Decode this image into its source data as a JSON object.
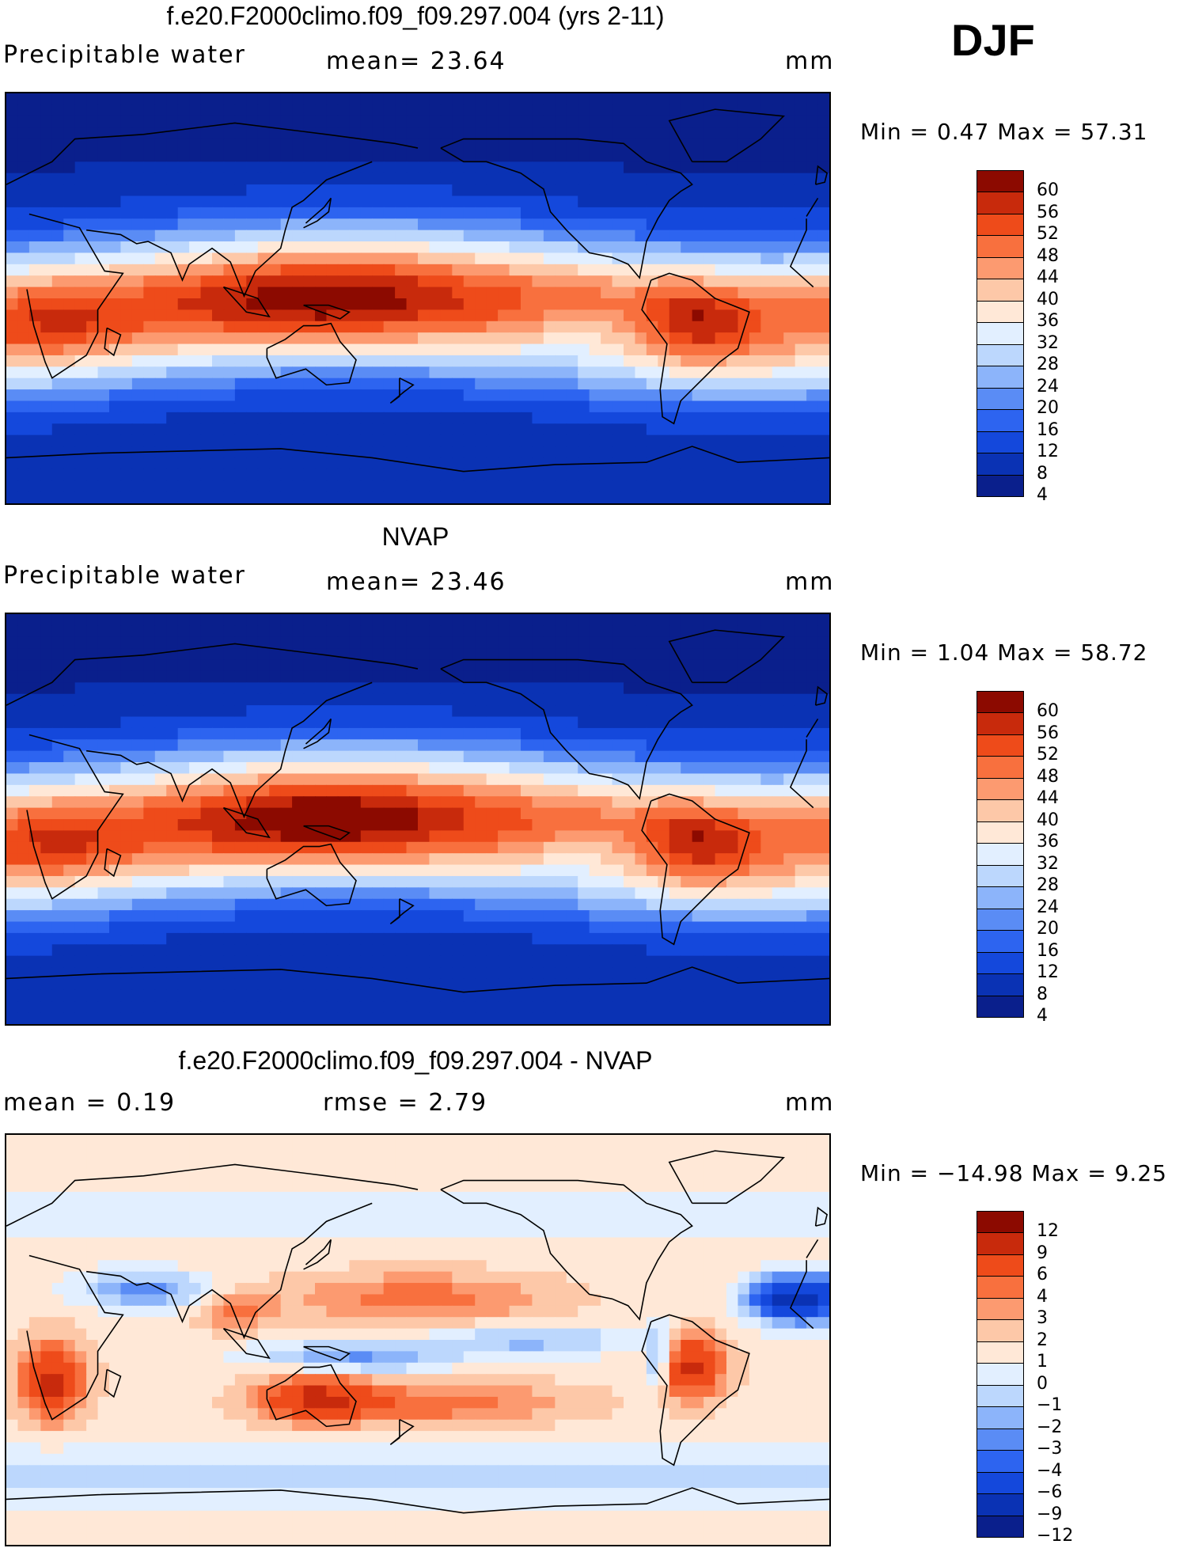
{
  "season": "DJF",
  "colors": {
    "abs_scale": [
      "#0a1f8c",
      "#0a32b4",
      "#1448dc",
      "#2d64f0",
      "#5a8cf5",
      "#8cb4fa",
      "#bcd7fd",
      "#e2efff",
      "#ffe8d7",
      "#fdc8a8",
      "#fc9a70",
      "#f8703e",
      "#ee4b1a",
      "#c82a0c",
      "#8c0a00"
    ],
    "diff_scale": [
      "#0a1f8c",
      "#0a32b4",
      "#1448dc",
      "#2d64f0",
      "#5a8cf5",
      "#8cb4fa",
      "#bcd7fd",
      "#e2efff",
      "#ffe8d7",
      "#fdc8a8",
      "#fc9a70",
      "#f8703e",
      "#ee4b1a",
      "#c82a0c",
      "#8c0a00"
    ],
    "land_outline": "#000000"
  },
  "panels": [
    {
      "title": "f.e20.F2000climo.f09_f09.297.004 (yrs 2-11)",
      "left_label": "Precipitable  water",
      "middle_label": "mean=   23.64",
      "right_label": "",
      "units": "mm",
      "min_text": "Min  =      0.47  Max  =    57.31",
      "colorbar_labels": [
        "60",
        "56",
        "52",
        "48",
        "44",
        "40",
        "36",
        "32",
        "28",
        "24",
        "20",
        "16",
        "12",
        "8",
        "4"
      ],
      "kind": "abs"
    },
    {
      "title": "NVAP",
      "left_label": "Precipitable  water",
      "middle_label": "mean=   23.46",
      "right_label": "",
      "units": "mm",
      "min_text": "Min  =      1.04  Max  =    58.72",
      "colorbar_labels": [
        "60",
        "56",
        "52",
        "48",
        "44",
        "40",
        "36",
        "32",
        "28",
        "24",
        "20",
        "16",
        "12",
        "8",
        "4"
      ],
      "kind": "abs"
    },
    {
      "title": "f.e20.F2000climo.f09_f09.297.004 - NVAP",
      "left_label": "mean  =     0.19",
      "middle_label": "rmse  =     2.79",
      "right_label": "",
      "units": "mm",
      "min_text": "Min  = −14.98  Max  =      9.25",
      "colorbar_labels": [
        "12",
        "9",
        "6",
        "4",
        "3",
        "2",
        "1",
        "0",
        "−1",
        "−2",
        "−3",
        "−4",
        "−6",
        "−9",
        "−12"
      ],
      "kind": "diff"
    }
  ]
}
